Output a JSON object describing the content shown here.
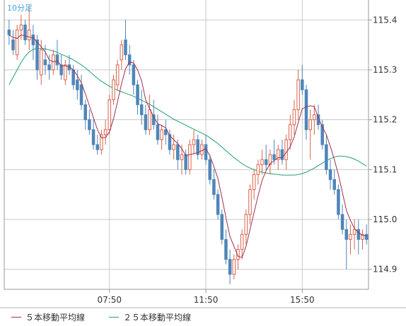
{
  "chart_title": "10分足",
  "legend": [
    {
      "label": "５本移動平均線",
      "color": "#a0304a"
    },
    {
      "label": "２５本移動平均線",
      "color": "#20a070"
    }
  ],
  "colors": {
    "up": "#d9634c",
    "down": "#4f86ba",
    "ma5": "#a0304a",
    "ma25": "#20a070",
    "grid": "#c8c8c8",
    "axis": "#999999"
  },
  "chart_data": {
    "type": "candlestick",
    "title": "10分足",
    "xlabel": "",
    "ylabel": "",
    "ylim": [
      114.86,
      115.44
    ],
    "yticks": [
      114.9,
      115.0,
      115.1,
      115.2,
      115.3,
      115.4
    ],
    "xticks": [
      {
        "label": "07:50",
        "index": 25
      },
      {
        "label": "11:50",
        "index": 49
      },
      {
        "label": "15:50",
        "index": 73
      }
    ],
    "candles": [
      [
        115.38,
        115.4,
        115.35,
        115.37
      ],
      [
        115.36,
        115.38,
        115.33,
        115.34
      ],
      [
        115.33,
        115.39,
        115.32,
        115.38
      ],
      [
        115.38,
        115.41,
        115.36,
        115.39
      ],
      [
        115.39,
        115.4,
        115.35,
        115.36
      ],
      [
        115.36,
        115.43,
        115.34,
        115.38
      ],
      [
        115.37,
        115.39,
        115.32,
        115.35
      ],
      [
        115.36,
        115.37,
        115.28,
        115.3
      ],
      [
        115.29,
        115.36,
        115.27,
        115.34
      ],
      [
        115.32,
        115.35,
        115.29,
        115.31
      ],
      [
        115.31,
        115.33,
        115.28,
        115.3
      ],
      [
        115.3,
        115.34,
        115.29,
        115.33
      ],
      [
        115.33,
        115.36,
        115.3,
        115.31
      ],
      [
        115.31,
        115.33,
        115.28,
        115.29
      ],
      [
        115.28,
        115.32,
        115.27,
        115.31
      ],
      [
        115.31,
        115.33,
        115.29,
        115.3
      ],
      [
        115.3,
        115.31,
        115.26,
        115.27
      ],
      [
        115.28,
        115.3,
        115.24,
        115.26
      ],
      [
        115.27,
        115.29,
        115.22,
        115.23
      ],
      [
        115.23,
        115.24,
        115.18,
        115.2
      ],
      [
        115.2,
        115.22,
        115.17,
        115.18
      ],
      [
        115.18,
        115.2,
        115.14,
        115.15
      ],
      [
        115.15,
        115.17,
        115.13,
        115.14
      ],
      [
        115.14,
        115.18,
        115.13,
        115.17
      ],
      [
        115.17,
        115.2,
        115.15,
        115.18
      ],
      [
        115.18,
        115.25,
        115.17,
        115.24
      ],
      [
        115.24,
        115.29,
        115.23,
        115.28
      ],
      [
        115.27,
        115.32,
        115.26,
        115.31
      ],
      [
        115.32,
        115.36,
        115.3,
        115.35
      ],
      [
        115.36,
        115.4,
        115.32,
        115.33
      ],
      [
        115.33,
        115.35,
        115.29,
        115.31
      ],
      [
        115.31,
        115.32,
        115.25,
        115.27
      ],
      [
        115.27,
        115.28,
        115.21,
        115.23
      ],
      [
        115.23,
        115.26,
        115.19,
        115.21
      ],
      [
        115.21,
        115.23,
        115.17,
        115.18
      ],
      [
        115.18,
        115.25,
        115.17,
        115.22
      ],
      [
        115.21,
        115.24,
        115.18,
        115.19
      ],
      [
        115.19,
        115.21,
        115.15,
        115.16
      ],
      [
        115.16,
        115.19,
        115.14,
        115.18
      ],
      [
        115.18,
        115.2,
        115.15,
        115.17
      ],
      [
        115.17,
        115.18,
        115.13,
        115.14
      ],
      [
        115.14,
        115.17,
        115.12,
        115.15
      ],
      [
        115.15,
        115.16,
        115.1,
        115.12
      ],
      [
        115.12,
        115.15,
        115.09,
        115.13
      ],
      [
        115.13,
        115.14,
        115.09,
        115.1
      ],
      [
        115.1,
        115.16,
        115.09,
        115.15
      ],
      [
        115.15,
        115.18,
        115.13,
        115.16
      ],
      [
        115.16,
        115.17,
        115.12,
        115.13
      ],
      [
        115.13,
        115.16,
        115.12,
        115.15
      ],
      [
        115.15,
        115.17,
        115.11,
        115.12
      ],
      [
        115.12,
        115.13,
        115.07,
        115.08
      ],
      [
        115.08,
        115.1,
        115.04,
        115.05
      ],
      [
        115.05,
        115.06,
        115.0,
        115.01
      ],
      [
        115.01,
        115.02,
        114.95,
        114.96
      ],
      [
        114.96,
        114.98,
        114.91,
        114.92
      ],
      [
        114.92,
        114.94,
        114.87,
        114.89
      ],
      [
        114.89,
        114.93,
        114.88,
        114.92
      ],
      [
        114.92,
        114.95,
        114.9,
        114.94
      ],
      [
        114.94,
        114.98,
        114.92,
        114.97
      ],
      [
        114.97,
        115.02,
        114.95,
        115.01
      ],
      [
        115.01,
        115.07,
        114.99,
        115.06
      ],
      [
        115.06,
        115.1,
        115.04,
        115.09
      ],
      [
        115.09,
        115.12,
        115.07,
        115.11
      ],
      [
        115.11,
        115.14,
        115.09,
        115.12
      ],
      [
        115.12,
        115.15,
        115.1,
        115.11
      ],
      [
        115.11,
        115.14,
        115.09,
        115.13
      ],
      [
        115.13,
        115.16,
        115.11,
        115.12
      ],
      [
        115.12,
        115.15,
        115.1,
        115.14
      ],
      [
        115.14,
        115.16,
        115.11,
        115.12
      ],
      [
        115.12,
        115.17,
        115.1,
        115.16
      ],
      [
        115.16,
        115.21,
        115.14,
        115.19
      ],
      [
        115.19,
        115.24,
        115.17,
        115.22
      ],
      [
        115.22,
        115.3,
        115.2,
        115.28
      ],
      [
        115.28,
        115.31,
        115.25,
        115.26
      ],
      [
        115.26,
        115.27,
        115.16,
        115.18
      ],
      [
        115.18,
        115.22,
        115.12,
        115.2
      ],
      [
        115.2,
        115.23,
        115.17,
        115.21
      ],
      [
        115.21,
        115.23,
        115.18,
        115.19
      ],
      [
        115.19,
        115.2,
        115.14,
        115.15
      ],
      [
        115.15,
        115.17,
        115.09,
        115.1
      ],
      [
        115.1,
        115.12,
        115.06,
        115.08
      ],
      [
        115.08,
        115.1,
        115.05,
        115.06
      ],
      [
        115.06,
        115.07,
        115.0,
        115.01
      ],
      [
        115.01,
        115.03,
        114.97,
        114.98
      ],
      [
        114.98,
        115.0,
        114.9,
        114.96
      ],
      [
        114.96,
        114.99,
        114.93,
        114.97
      ],
      [
        114.97,
        115.0,
        114.94,
        114.98
      ],
      [
        114.98,
        115.0,
        114.93,
        114.96
      ],
      [
        114.96,
        114.98,
        114.94,
        114.97
      ],
      [
        114.97,
        114.99,
        114.95,
        114.96
      ]
    ],
    "ma5": [
      115.37,
      115.365,
      115.363,
      115.37,
      115.368,
      115.366,
      115.364,
      115.356,
      115.346,
      115.336,
      115.32,
      115.316,
      115.318,
      115.308,
      115.308,
      115.306,
      115.3,
      115.288,
      115.274,
      115.252,
      115.228,
      115.204,
      115.18,
      115.164,
      115.164,
      115.176,
      115.202,
      115.236,
      115.272,
      115.302,
      115.316,
      115.314,
      115.3,
      115.278,
      115.24,
      115.222,
      115.206,
      115.192,
      115.188,
      115.184,
      115.168,
      115.16,
      115.152,
      115.142,
      115.128,
      115.13,
      115.132,
      115.134,
      115.138,
      115.142,
      115.128,
      115.106,
      115.082,
      115.044,
      115.004,
      114.966,
      114.946,
      114.926,
      114.924,
      114.946,
      114.98,
      115.014,
      115.048,
      115.078,
      115.098,
      115.112,
      115.118,
      115.124,
      115.124,
      115.134,
      115.146,
      115.166,
      115.194,
      115.222,
      115.226,
      115.228,
      115.226,
      115.204,
      115.186,
      115.17,
      115.146,
      115.12,
      115.09,
      115.054,
      115.018,
      114.998,
      114.982,
      114.974,
      114.968,
      114.968
    ],
    "ma25": [
      115.27,
      115.285,
      115.3,
      115.315,
      115.327,
      115.336,
      115.341,
      115.343,
      115.343,
      115.342,
      115.34,
      115.338,
      115.335,
      115.331,
      115.328,
      115.324,
      115.32,
      115.315,
      115.31,
      115.304,
      115.297,
      115.29,
      115.283,
      115.277,
      115.272,
      115.267,
      115.263,
      115.259,
      115.256,
      115.253,
      115.25,
      115.247,
      115.243,
      115.239,
      115.235,
      115.231,
      115.226,
      115.221,
      115.216,
      115.211,
      115.206,
      115.201,
      115.197,
      115.193,
      115.189,
      115.185,
      115.181,
      115.177,
      115.173,
      115.169,
      115.164,
      115.158,
      115.152,
      115.145,
      115.138,
      115.131,
      115.124,
      115.118,
      115.112,
      115.107,
      115.103,
      115.1,
      115.097,
      115.095,
      115.093,
      115.092,
      115.091,
      115.09,
      115.089,
      115.089,
      115.089,
      115.089,
      115.09,
      115.092,
      115.095,
      115.099,
      115.103,
      115.108,
      115.113,
      115.118,
      115.122,
      115.125,
      115.127,
      115.127,
      115.126,
      115.124,
      115.121,
      115.117,
      115.112,
      115.107
    ]
  }
}
